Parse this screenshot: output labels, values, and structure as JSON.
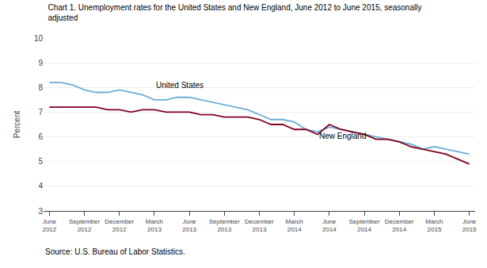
{
  "chart_data": {
    "type": "line",
    "title": "Chart 1. Unemployment rates for the United States and New England, June 2012 to June 2015, seasonally\nadjusted",
    "y_label": "Percent",
    "source": "Source: U.S. Bureau of Labor Statistics.",
    "categories": [
      "June\n2012",
      null,
      null,
      "September\n2012",
      null,
      null,
      "December\n2012",
      null,
      null,
      "March\n2013",
      null,
      null,
      "June\n2013",
      null,
      null,
      "September\n2013",
      null,
      null,
      "December\n2013",
      null,
      null,
      "March\n2014",
      null,
      null,
      "June\n2014",
      null,
      null,
      "September\n2014",
      null,
      null,
      "December\n2014",
      null,
      null,
      "March\n2015",
      null,
      null,
      "June\n2015"
    ],
    "series": [
      {
        "name": "United States",
        "color": "#6BAED6",
        "values": [
          8.2,
          8.2,
          8.1,
          7.9,
          7.8,
          7.8,
          7.9,
          7.8,
          7.7,
          7.5,
          7.5,
          7.6,
          7.6,
          7.5,
          7.4,
          7.3,
          7.2,
          7.1,
          6.9,
          6.7,
          6.7,
          6.6,
          6.3,
          6.2,
          6.4,
          6.3,
          6.2,
          6.1,
          6.0,
          5.9,
          5.8,
          5.7,
          5.5,
          5.6,
          5.5,
          5.4,
          5.3
        ]
      },
      {
        "name": "New England",
        "color": "#800020",
        "values": [
          7.2,
          7.2,
          7.2,
          7.2,
          7.2,
          7.1,
          7.1,
          7.0,
          7.1,
          7.1,
          7.0,
          7.0,
          7.0,
          6.9,
          6.9,
          6.8,
          6.8,
          6.8,
          6.7,
          6.5,
          6.5,
          6.3,
          6.3,
          6.1,
          6.5,
          6.3,
          6.2,
          6.1,
          5.9,
          5.9,
          5.8,
          5.6,
          5.5,
          5.4,
          5.3,
          5.1,
          4.9
        ]
      }
    ],
    "annotations": [
      {
        "text": "United States",
        "x": 9,
        "y": 7.85
      },
      {
        "text": "New England",
        "x": 23,
        "y": 5.8
      }
    ],
    "ylim": [
      3,
      10
    ],
    "yticks": [
      3,
      4,
      5,
      6,
      7,
      8,
      9,
      10
    ],
    "grid": true
  }
}
